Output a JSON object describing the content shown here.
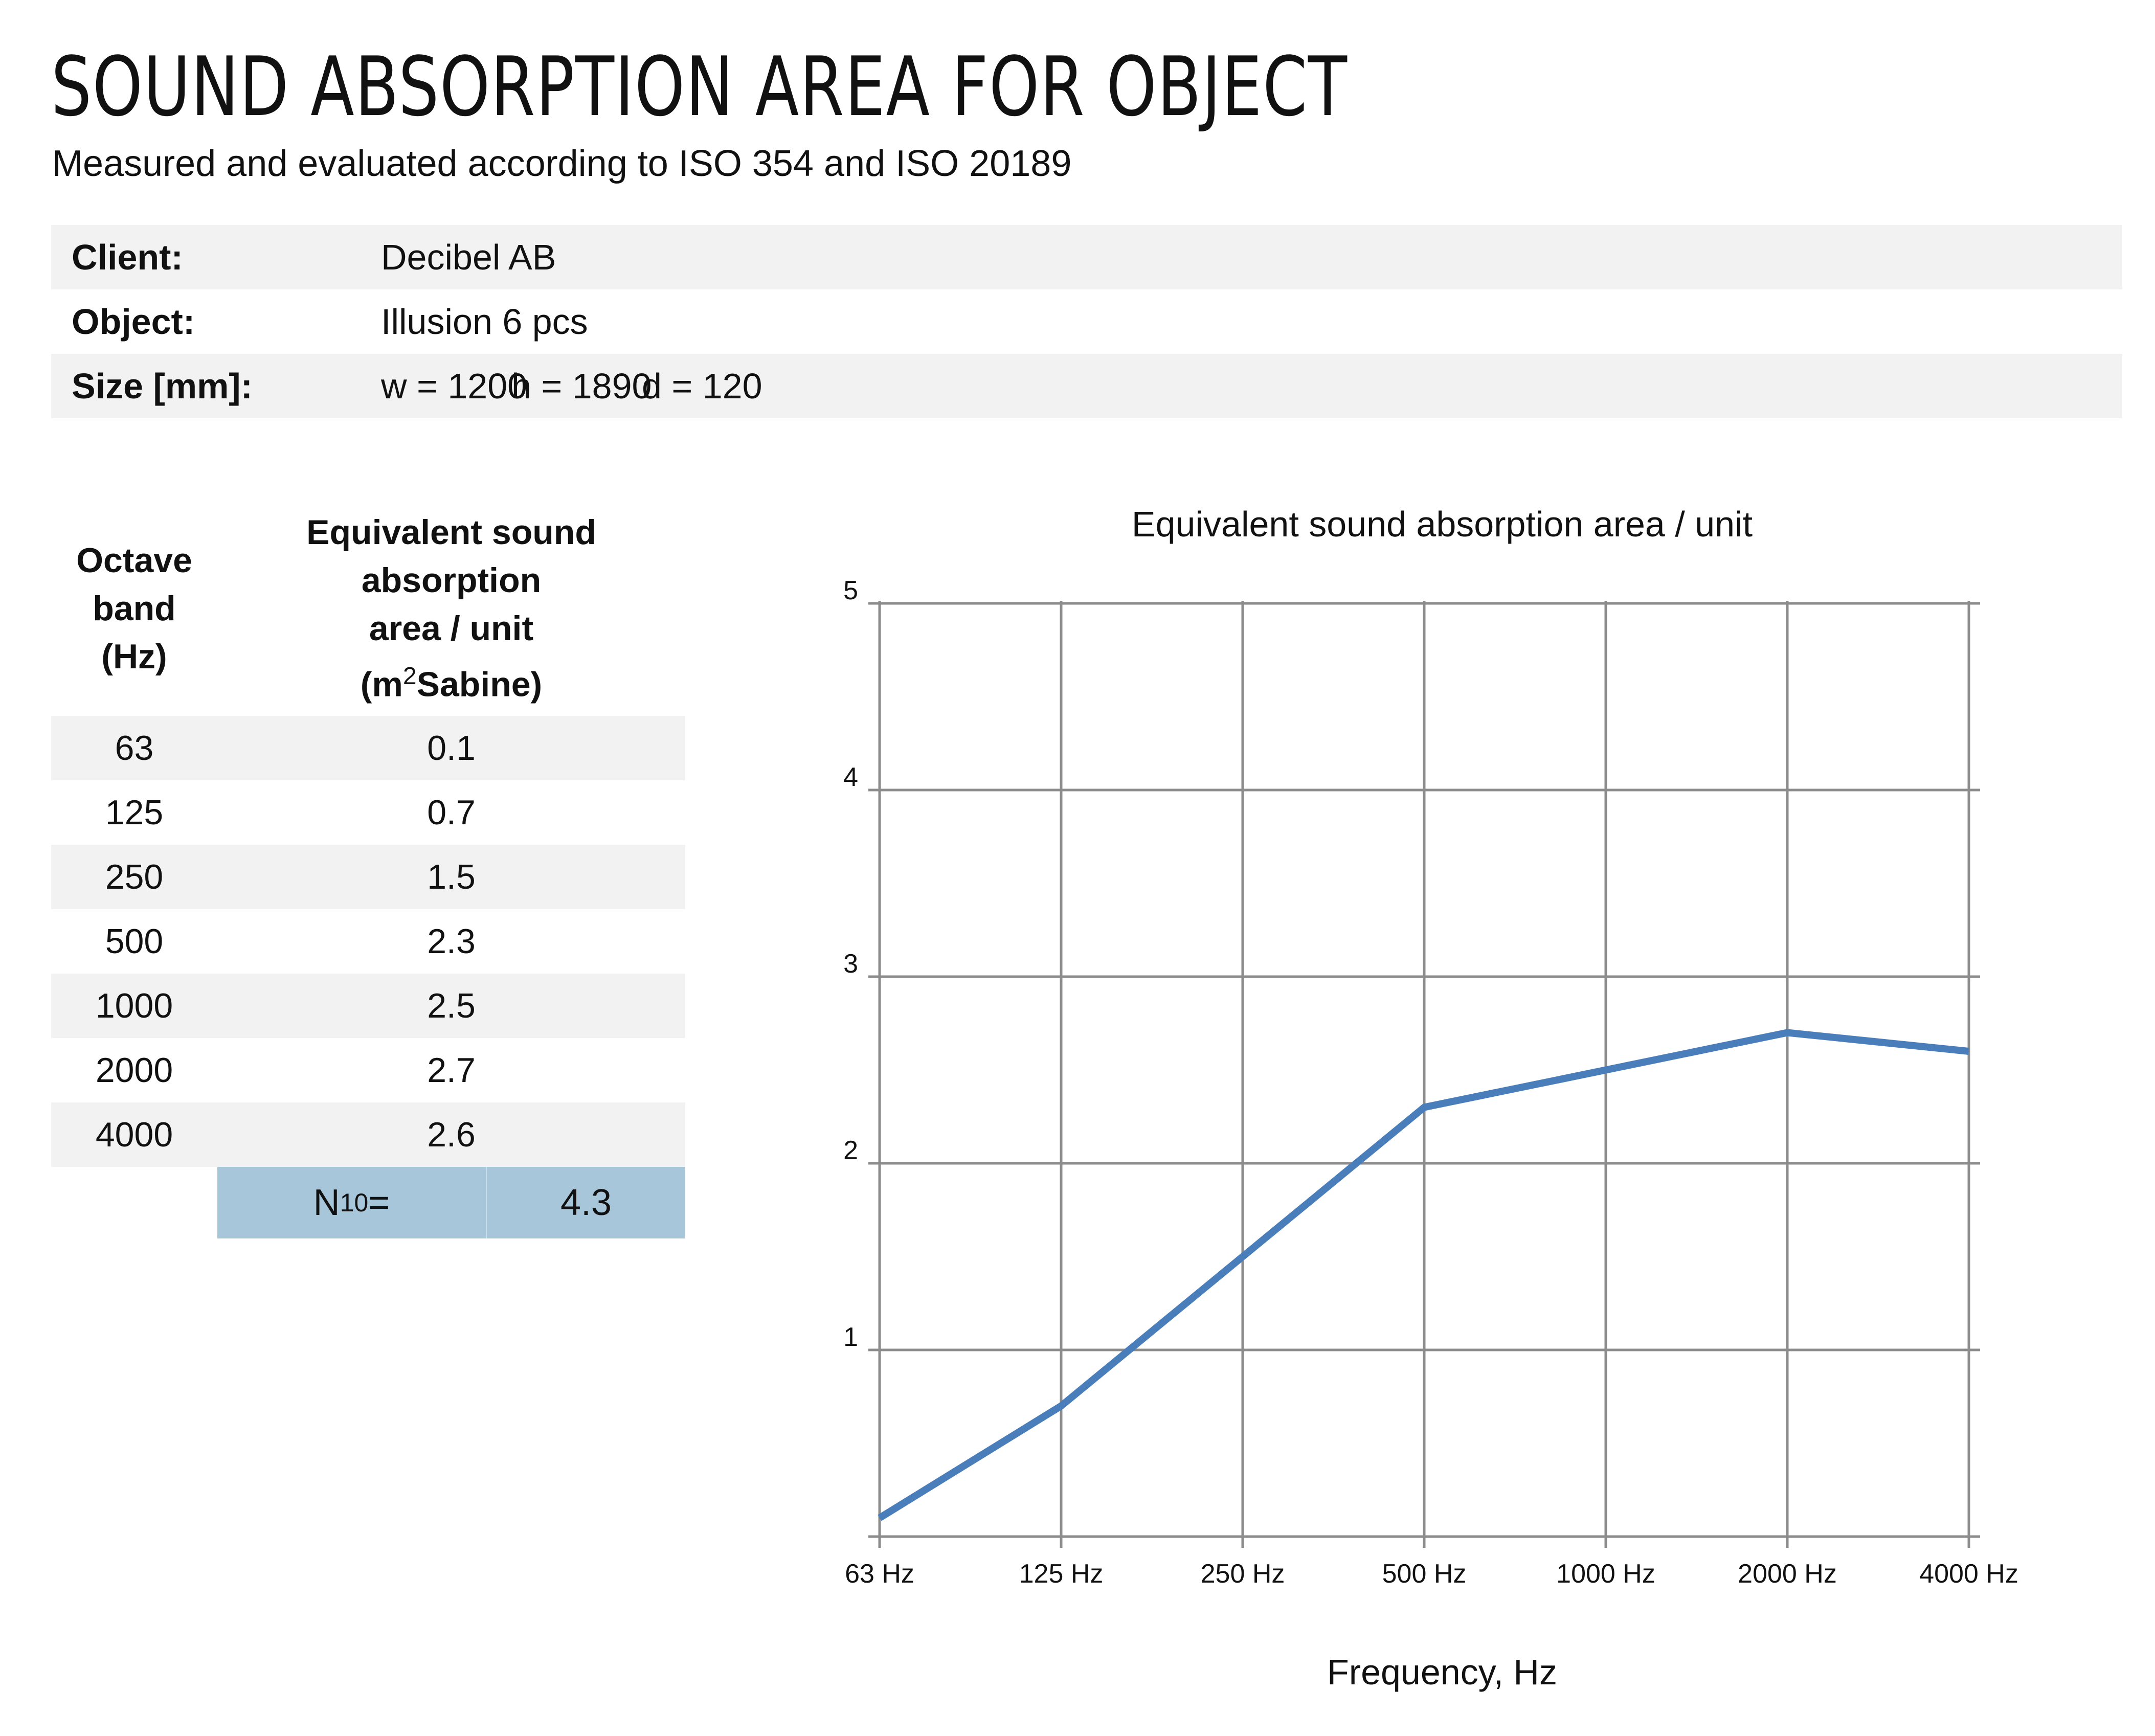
{
  "header": {
    "title": "SOUND ABSORPTION AREA FOR OBJECT",
    "subtitle": "Measured and evaluated according to ISO 354 and ISO 20189"
  },
  "info": {
    "client_label": "Client:",
    "client_value": "Decibel AB",
    "object_label": "Object:",
    "object_value": "Illusion 6 pcs",
    "size_label": "Size [mm]:",
    "size_w": "w = 1200",
    "size_h": "h = 1890",
    "size_d": "d = 120"
  },
  "table": {
    "col1_header": [
      "Octave",
      "band",
      "(Hz)"
    ],
    "col2_header_lines": [
      "Equivalent sound",
      "absorption",
      "area / unit"
    ],
    "col2_header_unit_prefix": "(m",
    "col2_header_unit_sup": "2",
    "col2_header_unit_suffix": "Sabine)",
    "rows": [
      {
        "band": "63",
        "value": "0.1"
      },
      {
        "band": "125",
        "value": "0.7"
      },
      {
        "band": "250",
        "value": "1.5"
      },
      {
        "band": "500",
        "value": "2.3"
      },
      {
        "band": "1000",
        "value": "2.5"
      },
      {
        "band": "2000",
        "value": "2.7"
      },
      {
        "band": "4000",
        "value": "2.6"
      }
    ],
    "n10_label_main": "N",
    "n10_label_sub": "10",
    "n10_label_eq": " =",
    "n10_value": "4.3"
  },
  "chart_data": {
    "type": "line",
    "title": "Equivalent sound absorption area / unit",
    "xlabel": "Frequency, Hz",
    "ylabel": "",
    "categories": [
      "63 Hz",
      "125 Hz",
      "250 Hz",
      "500 Hz",
      "1000 Hz",
      "2000 Hz",
      "4000 Hz"
    ],
    "series": [
      {
        "values": [
          0.1,
          0.7,
          1.5,
          2.3,
          2.5,
          2.7,
          2.6
        ],
        "color": "#4a7ebb"
      }
    ],
    "ylim": [
      0,
      5
    ],
    "yticks": [
      1,
      2,
      3,
      4,
      5
    ],
    "grid": true,
    "legend": "none"
  }
}
